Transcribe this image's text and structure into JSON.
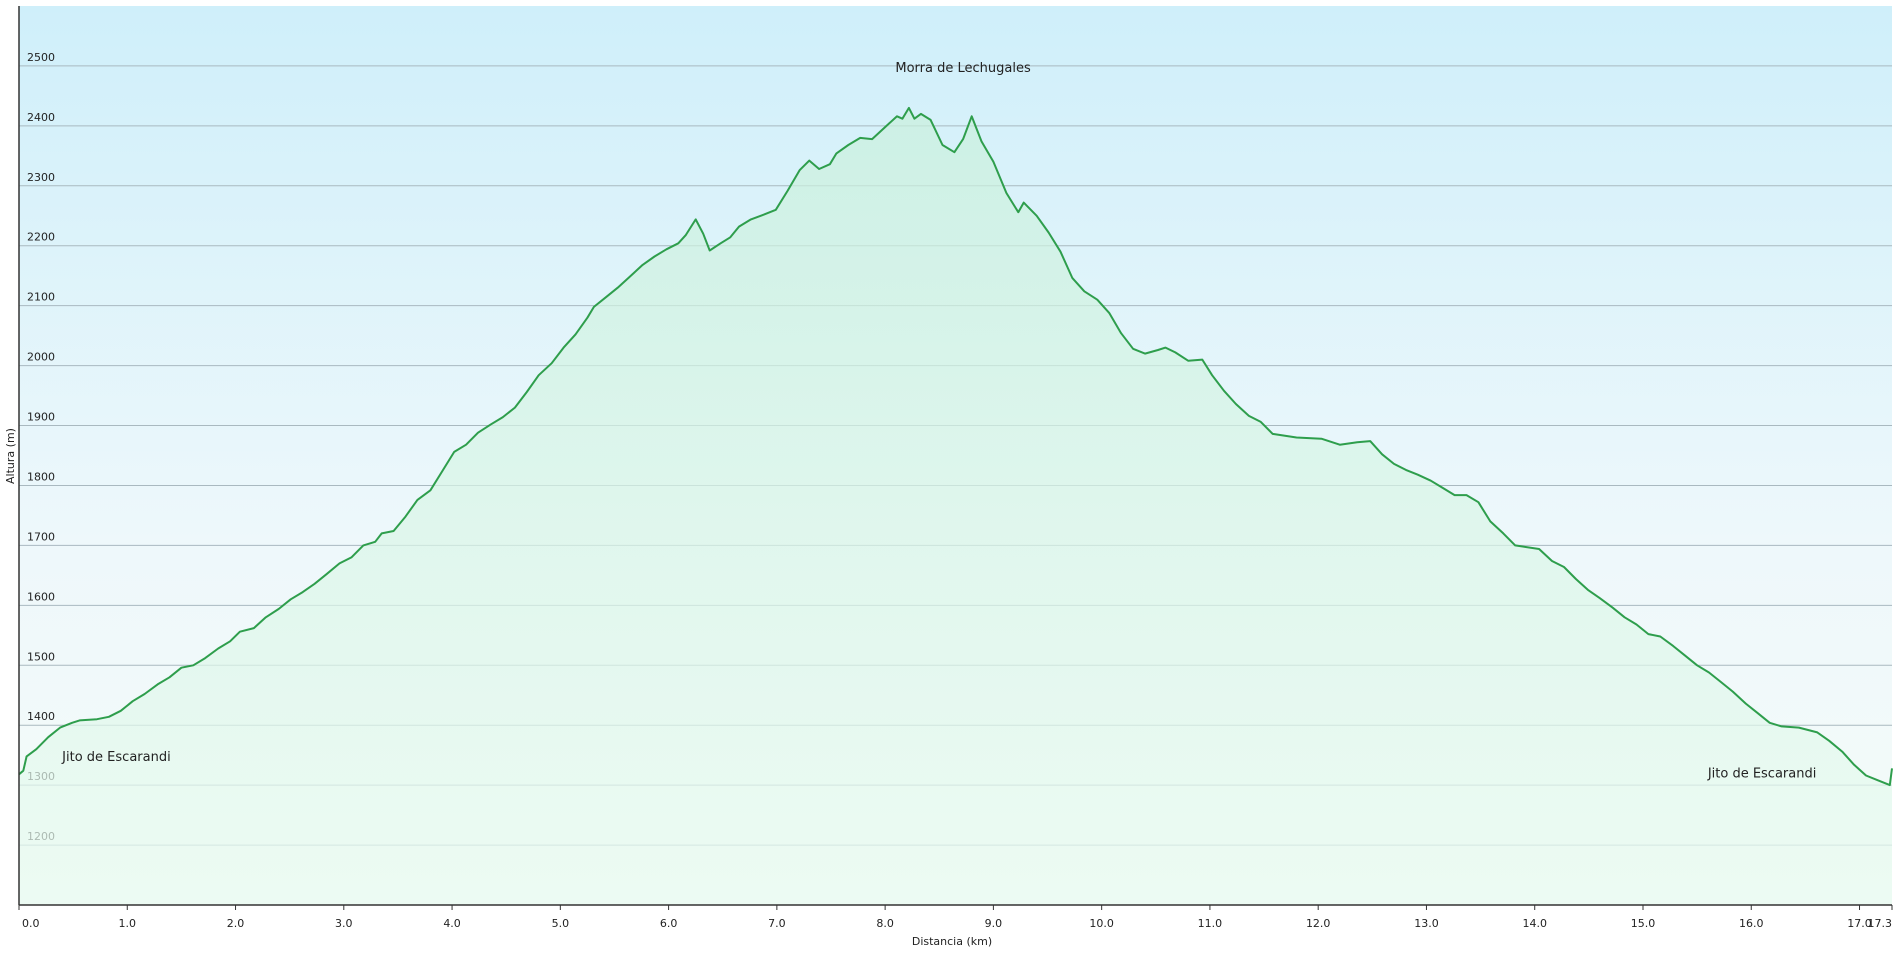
{
  "chart_data": {
    "type": "area",
    "xlabel": "Distancia  (km)",
    "ylabel": "Altura (m)",
    "xlim": [
      0,
      17.3
    ],
    "ylim": [
      1100,
      2600
    ],
    "xticks": [
      {
        "value": 0,
        "label": "0.0"
      },
      {
        "value": 1,
        "label": "1.0"
      },
      {
        "value": 2,
        "label": "2.0"
      },
      {
        "value": 3,
        "label": "3.0"
      },
      {
        "value": 4,
        "label": "4.0"
      },
      {
        "value": 5,
        "label": "5.0"
      },
      {
        "value": 6,
        "label": "6.0"
      },
      {
        "value": 7,
        "label": "7.0"
      },
      {
        "value": 8,
        "label": "8.0"
      },
      {
        "value": 9,
        "label": "9.0"
      },
      {
        "value": 10,
        "label": "10.0"
      },
      {
        "value": 11,
        "label": "11.0"
      },
      {
        "value": 12,
        "label": "12.0"
      },
      {
        "value": 13,
        "label": "13.0"
      },
      {
        "value": 14,
        "label": "14.0"
      },
      {
        "value": 15,
        "label": "15.0"
      },
      {
        "value": 16,
        "label": "16.0"
      },
      {
        "value": 17,
        "label": "17.0"
      },
      17.3
    ],
    "yticks": [
      1200,
      1300,
      1400,
      1500,
      1600,
      1700,
      1800,
      1900,
      2000,
      2100,
      2200,
      2300,
      2400,
      2500
    ],
    "grid": true,
    "color": "#2e9e4c",
    "annotations": [
      {
        "text": "Morra de Lechugales",
        "x": 8.72,
        "y": 2490
      },
      {
        "text": "Jito de Escarandi",
        "x": 0.9,
        "y": 1340
      },
      {
        "text": "Jito de Escarandi",
        "x": 16.1,
        "y": 1313
      }
    ],
    "x": [
      0,
      0.04,
      0.07,
      0.16,
      0.27,
      0.38,
      0.49,
      0.56,
      0.72,
      0.83,
      0.94,
      1.05,
      1.16,
      1.28,
      1.39,
      1.5,
      1.61,
      1.72,
      1.84,
      1.95,
      2.04,
      2.17,
      2.28,
      2.4,
      2.51,
      2.62,
      2.73,
      2.84,
      2.96,
      3.07,
      3.18,
      3.29,
      3.35,
      3.46,
      3.57,
      3.68,
      3.8,
      3.91,
      4.02,
      4.13,
      4.24,
      4.36,
      4.47,
      4.58,
      4.69,
      4.8,
      4.92,
      5.03,
      5.14,
      5.25,
      5.31,
      5.42,
      5.53,
      5.64,
      5.76,
      5.87,
      5.98,
      6.09,
      6.16,
      6.25,
      6.32,
      6.38,
      6.48,
      6.57,
      6.65,
      6.76,
      6.88,
      6.99,
      7.1,
      7.21,
      7.3,
      7.39,
      7.49,
      7.55,
      7.66,
      7.77,
      7.88,
      8.0,
      8.11,
      8.16,
      8.22,
      8.27,
      8.33,
      8.42,
      8.53,
      8.64,
      8.72,
      8.8,
      8.89,
      9.0,
      9.12,
      9.23,
      9.28,
      9.4,
      9.51,
      9.62,
      9.73,
      9.84,
      9.96,
      10.07,
      10.18,
      10.29,
      10.4,
      10.52,
      10.59,
      10.68,
      10.8,
      10.93,
      11.02,
      11.13,
      11.24,
      11.36,
      11.47,
      11.58,
      11.8,
      12.03,
      12.2,
      12.36,
      12.48,
      12.59,
      12.7,
      12.81,
      12.92,
      13.04,
      13.15,
      13.26,
      13.37,
      13.48,
      13.59,
      13.71,
      13.82,
      14.04,
      14.16,
      14.27,
      14.38,
      14.49,
      14.6,
      14.72,
      14.83,
      14.94,
      15.05,
      15.16,
      15.28,
      15.39,
      15.5,
      15.61,
      15.72,
      15.83,
      15.95,
      16.06,
      16.17,
      16.28,
      16.44,
      16.61,
      16.72,
      16.84,
      16.95,
      17.06,
      17.17,
      17.28,
      17.3
    ],
    "values": [
      1318,
      1324,
      1348,
      1360,
      1380,
      1396,
      1404,
      1408,
      1410,
      1414,
      1424,
      1440,
      1452,
      1468,
      1480,
      1496,
      1500,
      1512,
      1528,
      1540,
      1556,
      1562,
      1580,
      1594,
      1610,
      1622,
      1636,
      1652,
      1670,
      1680,
      1700,
      1706,
      1720,
      1724,
      1748,
      1776,
      1792,
      1824,
      1856,
      1868,
      1888,
      1902,
      1914,
      1930,
      1956,
      1984,
      2004,
      2030,
      2052,
      2080,
      2098,
      2114,
      2130,
      2148,
      2168,
      2182,
      2194,
      2204,
      2218,
      2244,
      2220,
      2192,
      2204,
      2214,
      2232,
      2244,
      2252,
      2260,
      2292,
      2326,
      2342,
      2328,
      2336,
      2354,
      2368,
      2380,
      2378,
      2398,
      2416,
      2412,
      2430,
      2412,
      2420,
      2410,
      2368,
      2356,
      2378,
      2416,
      2374,
      2340,
      2288,
      2256,
      2272,
      2250,
      2222,
      2190,
      2146,
      2124,
      2110,
      2088,
      2054,
      2028,
      2020,
      2026,
      2030,
      2022,
      2008,
      2010,
      1984,
      1958,
      1936,
      1916,
      1906,
      1886,
      1880,
      1878,
      1868,
      1872,
      1874,
      1852,
      1836,
      1826,
      1818,
      1808,
      1796,
      1784,
      1784,
      1772,
      1740,
      1720,
      1700,
      1694,
      1674,
      1664,
      1644,
      1626,
      1612,
      1596,
      1580,
      1568,
      1552,
      1548,
      1532,
      1516,
      1500,
      1488,
      1472,
      1456,
      1436,
      1420,
      1404,
      1398,
      1396,
      1388,
      1374,
      1356,
      1334,
      1316,
      1308,
      1300,
      1328
    ]
  }
}
